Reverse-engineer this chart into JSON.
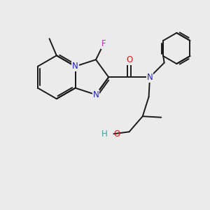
{
  "background_color": "#ebebeb",
  "bond_color": "#1a1a1a",
  "bond_width": 1.4,
  "N_color": "#2020cc",
  "O_color": "#cc2020",
  "F_color": "#cc20cc",
  "H_color": "#4a9a9a",
  "figsize": [
    3.0,
    3.0
  ],
  "dpi": 100,
  "xlim": [
    0,
    10
  ],
  "ylim": [
    0,
    10
  ]
}
